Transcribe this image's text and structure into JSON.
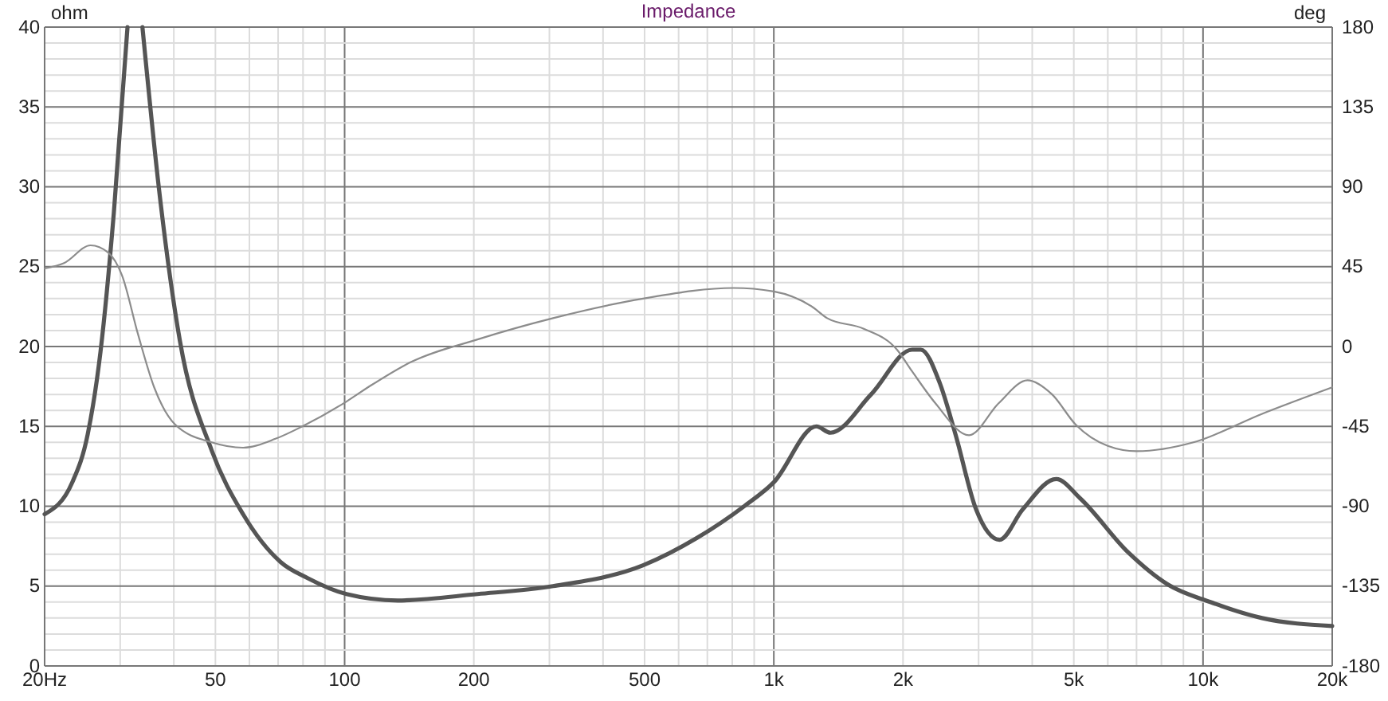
{
  "chart_data": {
    "type": "line",
    "title": "Impedance",
    "ylabel": "ohm",
    "y2label": "deg",
    "log": "x",
    "grid": true,
    "marker": "none",
    "line_style": "solid",
    "xlim": [
      20,
      20000
    ],
    "ylim": [
      0,
      40
    ],
    "y2lim": [
      -180,
      180
    ],
    "xticks": [
      {
        "value": 20,
        "label": "20Hz"
      },
      {
        "value": 30,
        "label": null
      },
      {
        "value": 40,
        "label": null
      },
      50,
      {
        "value": 60,
        "label": null
      },
      {
        "value": 70,
        "label": null
      },
      {
        "value": 80,
        "label": null
      },
      {
        "value": 90,
        "label": null
      },
      100,
      200,
      {
        "value": 300,
        "label": null
      },
      {
        "value": 400,
        "label": null
      },
      500,
      {
        "value": 600,
        "label": null
      },
      {
        "value": 700,
        "label": null
      },
      {
        "value": 800,
        "label": null
      },
      {
        "value": 900,
        "label": null
      },
      {
        "value": 1000,
        "label": "1k"
      },
      {
        "value": 2000,
        "label": "2k"
      },
      {
        "value": 3000,
        "label": null
      },
      {
        "value": 4000,
        "label": null
      },
      {
        "value": 5000,
        "label": "5k"
      },
      {
        "value": 6000,
        "label": null
      },
      {
        "value": 7000,
        "label": null
      },
      {
        "value": 8000,
        "label": null
      },
      {
        "value": 9000,
        "label": null
      },
      {
        "value": 10000,
        "label": "10k"
      },
      {
        "value": 20000,
        "label": "20k"
      }
    ],
    "yticks": [
      0,
      {
        "value": 1,
        "label": null
      },
      {
        "value": 2,
        "label": null
      },
      {
        "value": 3,
        "label": null
      },
      {
        "value": 4,
        "label": null
      },
      5,
      {
        "value": 6,
        "label": null
      },
      {
        "value": 7,
        "label": null
      },
      {
        "value": 8,
        "label": null
      },
      {
        "value": 9,
        "label": null
      },
      10,
      {
        "value": 11,
        "label": null
      },
      {
        "value": 12,
        "label": null
      },
      {
        "value": 13,
        "label": null
      },
      {
        "value": 14,
        "label": null
      },
      15,
      {
        "value": 16,
        "label": null
      },
      {
        "value": 17,
        "label": null
      },
      {
        "value": 18,
        "label": null
      },
      {
        "value": 19,
        "label": null
      },
      20,
      {
        "value": 21,
        "label": null
      },
      {
        "value": 22,
        "label": null
      },
      {
        "value": 23,
        "label": null
      },
      {
        "value": 24,
        "label": null
      },
      25,
      {
        "value": 26,
        "label": null
      },
      {
        "value": 27,
        "label": null
      },
      {
        "value": 28,
        "label": null
      },
      {
        "value": 29,
        "label": null
      },
      30,
      {
        "value": 31,
        "label": null
      },
      {
        "value": 32,
        "label": null
      },
      {
        "value": 33,
        "label": null
      },
      {
        "value": 34,
        "label": null
      },
      35,
      {
        "value": 36,
        "label": null
      },
      {
        "value": 37,
        "label": null
      },
      {
        "value": 38,
        "label": null
      },
      {
        "value": 39,
        "label": null
      },
      40
    ],
    "y2ticks": [
      -180,
      -135,
      -90,
      -45,
      0,
      45,
      90,
      135,
      180
    ],
    "series": [
      {
        "color": "#555555",
        "x": [
          20,
          23.2,
          25.2,
          27,
          29,
          31.2,
          32.2,
          33.8,
          37,
          41.3,
          49,
          58,
          71,
          82,
          101,
          133,
          204,
          306,
          496,
          661,
          853,
          1000,
          1257,
          1355,
          1685,
          2100,
          2200,
          2437,
          2650,
          2960,
          3357,
          3800,
          4550,
          5170,
          6700,
          8280,
          10400,
          13720,
          20000
        ],
        "values": [
          9.5,
          11.5,
          14.5,
          19.7,
          28.4,
          40,
          null,
          40,
          29.7,
          20.4,
          13.5,
          9.5,
          6.5,
          5.5,
          4.5,
          4.1,
          4.5,
          5,
          6.3,
          8,
          10,
          11.5,
          15,
          14.6,
          17,
          19.8,
          19.8,
          17.7,
          14.5,
          9.8,
          7.9,
          9.8,
          11.7,
          10.5,
          7.1,
          5.1,
          4,
          3,
          2.5
        ]
      },
      {
        "color": "#8c8c8c",
        "axis": "y2",
        "x": [
          20,
          22.2,
          25.6,
          28.1,
          30.3,
          33,
          36,
          40.3,
          49,
          58,
          69,
          79.7,
          101,
          115,
          142,
          204,
          306,
          496,
          806,
          1000,
          1235,
          1331,
          1620,
          1940,
          2100,
          2380,
          2850,
          3340,
          3900,
          4450,
          5050,
          6000,
          7000,
          9500,
          13700,
          20000
        ],
        "values": [
          44,
          47,
          57,
          53,
          40,
          7,
          -23,
          -44,
          -54,
          -57,
          -52,
          -45,
          -31,
          -22,
          -9,
          4,
          16,
          27,
          33,
          31,
          22,
          16,
          10,
          -2,
          -14,
          -32,
          -50,
          -32,
          -19,
          -27,
          -44,
          -56,
          -59,
          -54,
          -38,
          -23
        ]
      }
    ]
  }
}
